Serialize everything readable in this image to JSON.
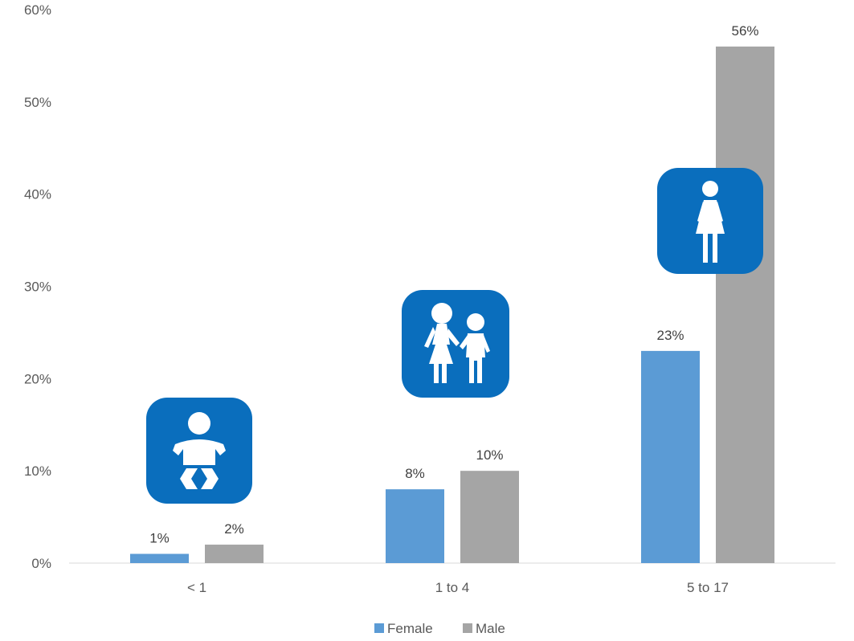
{
  "chart_data": {
    "type": "bar",
    "categories": [
      "< 1",
      "1 to 4",
      "5 to 17"
    ],
    "series": [
      {
        "name": "Female",
        "color": "#5b9bd5",
        "values": [
          1,
          8,
          23
        ],
        "labels": [
          "1%",
          "8%",
          "23%"
        ]
      },
      {
        "name": "Male",
        "color": "#a5a5a5",
        "values": [
          2,
          10,
          56
        ],
        "labels": [
          "2%",
          "10%",
          "56%"
        ]
      }
    ],
    "ylim": [
      0,
      60
    ],
    "yticks": [
      "0%",
      "10%",
      "20%",
      "30%",
      "40%",
      "50%",
      "60%"
    ],
    "ytick_values": [
      0,
      10,
      20,
      30,
      40,
      50,
      60
    ],
    "grid": false,
    "legend_position": "bottom",
    "icons": [
      {
        "category": "< 1",
        "name": "baby-icon"
      },
      {
        "category": "1 to 4",
        "name": "children-icon"
      },
      {
        "category": "5 to 17",
        "name": "girl-icon"
      }
    ],
    "icon_color": "#0a6ebd"
  }
}
